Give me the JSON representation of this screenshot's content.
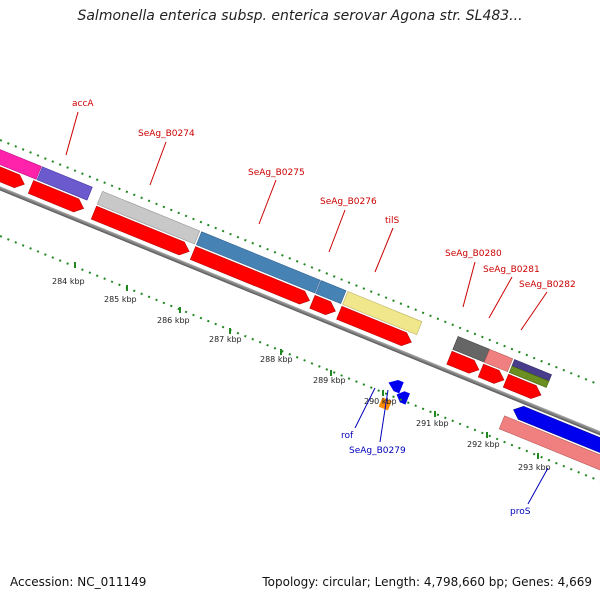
{
  "title": "Salmonella enterica subsp. enterica serovar Agona str. SL483...",
  "footer": {
    "accession": "Accession: NC_011149",
    "summary": "Topology: circular; Length: 4,798,660 bp; Genes: 4,669"
  },
  "colors": {
    "label_red": "#cc0000",
    "label_blue": "#0000bb",
    "cds_red": "#ff0000",
    "tick_green": "#228822",
    "backbone": "#888888"
  },
  "ticks": [
    "284 kbp",
    "285 kbp",
    "286 kbp",
    "287 kbp",
    "288 kbp",
    "289 kbp",
    "290 kbp",
    "291 kbp",
    "292 kbp",
    "293 kbp"
  ],
  "gene_labels": {
    "accA": "accA",
    "SeAg_B0274": "SeAg_B0274",
    "SeAg_B0275": "SeAg_B0275",
    "SeAg_B0276": "SeAg_B0276",
    "tilS": "tilS",
    "SeAg_B0280": "SeAg_B0280",
    "SeAg_B0281": "SeAg_B0281",
    "SeAg_B0282": "SeAg_B0282",
    "rof": "rof",
    "SeAg_B0279": "SeAg_B0279",
    "proS": "proS"
  }
}
